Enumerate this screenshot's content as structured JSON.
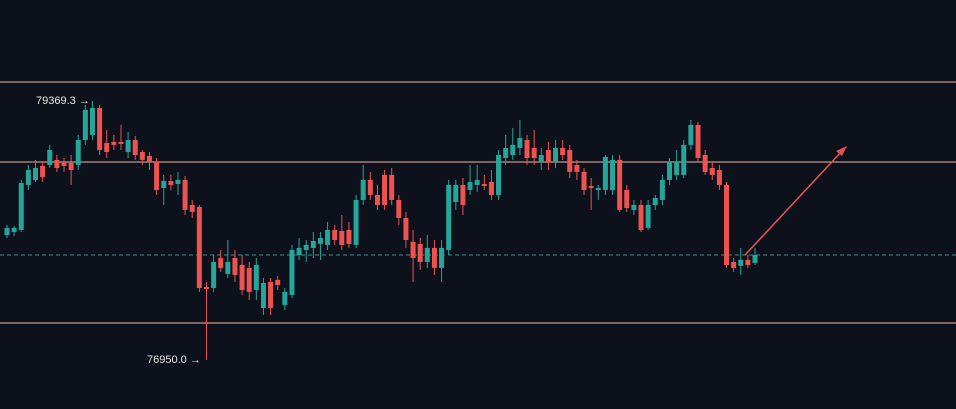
{
  "chart_data": {
    "type": "candlestick",
    "open": [
      78118,
      78146,
      78165,
      78585,
      78632,
      78763,
      78772,
      78819,
      78791,
      78791,
      78772,
      79005,
      79052,
      79304,
      78977,
      78987,
      78987,
      78893,
      79005,
      78893,
      78856,
      78800,
      78557,
      78622,
      78594,
      78632,
      78398,
      78380,
      77632,
      77623,
      77903,
      77754,
      77903,
      77838,
      77810,
      77604,
      77436,
      77679,
      77698,
      77464,
      77558,
      77931,
      77978,
      77997,
      78034,
      78025,
      78165,
      78155,
      78165,
      78025,
      78445,
      78632,
      78492,
      78679,
      78679,
      78445,
      78277,
      78053,
      78034,
      77866,
      77997,
      77810,
      77978,
      78426,
      78585,
      78538,
      78585,
      78594,
      78613,
      78492,
      78837,
      78865,
      78931,
      79005,
      78931,
      78800,
      78912,
      78800,
      78931,
      78912,
      78772,
      78707,
      78576,
      78538,
      78538,
      78538,
      78819,
      78538,
      78352,
      78398,
      78184,
      78398,
      78445,
      78632,
      78679,
      78679,
      78959,
      79146,
      78865,
      78744,
      78725,
      78585,
      77866,
      77829,
      77885,
      77857
    ],
    "high": [
      78212,
      78202,
      78632,
      78772,
      78819,
      78800,
      78959,
      78865,
      78837,
      78865,
      79052,
      79332,
      79369.3,
      79332,
      79099,
      79052,
      79146,
      79080,
      79043,
      78912,
      78893,
      78837,
      78679,
      78679,
      78707,
      78669,
      78445,
      78398,
      77679,
      77931,
      77978,
      78071,
      77978,
      77931,
      77866,
      77903,
      77716,
      77716,
      77735,
      77623,
      78025,
      78090,
      78071,
      78146,
      78146,
      78240,
      78212,
      78305,
      78240,
      78492,
      78772,
      78707,
      78585,
      78725,
      78744,
      78492,
      78333,
      78165,
      78090,
      78118,
      78071,
      78071,
      78632,
      78632,
      78650,
      78772,
      78772,
      78679,
      78725,
      78912,
      79052,
      79118,
      79192,
      79052,
      79099,
      78931,
      78987,
      79005,
      79005,
      78959,
      78819,
      78744,
      78650,
      78585,
      78865,
      78865,
      78865,
      78585,
      78445,
      78445,
      78445,
      78492,
      78679,
      78837,
      78912,
      79005,
      79192,
      79174,
      78912,
      78800,
      78772,
      78613,
      77903,
      77997,
      77931,
      77997
    ],
    "low": [
      78090,
      78109,
      78146,
      78538,
      78613,
      78613,
      78744,
      78707,
      78707,
      78585,
      78725,
      78959,
      79005,
      78865,
      78837,
      78912,
      78912,
      78837,
      78819,
      78772,
      78725,
      78492,
      78398,
      78538,
      78492,
      78305,
      78277,
      77586,
      76950.0,
      77586,
      77773,
      77716,
      77679,
      77558,
      77511,
      77511,
      77371,
      77371,
      77604,
      77418,
      77530,
      77885,
      77866,
      77903,
      77885,
      77978,
      78025,
      77978,
      77997,
      77997,
      78398,
      78445,
      78352,
      78352,
      78398,
      78212,
      77997,
      77679,
      77791,
      77810,
      77745,
      77679,
      77931,
      78352,
      78305,
      78492,
      78520,
      78538,
      78445,
      78445,
      78772,
      78819,
      78865,
      78772,
      78772,
      78725,
      78725,
      78744,
      78819,
      78650,
      78632,
      78492,
      78352,
      78445,
      78492,
      78492,
      78333,
      78333,
      78305,
      78146,
      78165,
      78352,
      78398,
      78585,
      78632,
      78650,
      78912,
      78800,
      78679,
      78632,
      78538,
      77810,
      77773,
      77745,
      77810,
      77838
    ],
    "close": [
      78184,
      78184,
      78604,
      78725,
      78744,
      78660,
      78912,
      78744,
      78763,
      78725,
      79005,
      79286,
      79304,
      78912,
      78893,
      78959,
      78968,
      79005,
      78865,
      78819,
      78800,
      78538,
      78622,
      78585,
      78632,
      78352,
      78333,
      77623,
      77614,
      77866,
      77810,
      77866,
      77745,
      77604,
      77586,
      77838,
      77670,
      77436,
      77651,
      77586,
      77978,
      77997,
      78025,
      78062,
      78090,
      78165,
      78071,
      78025,
      78034,
      78445,
      78632,
      78492,
      78398,
      78398,
      78445,
      78277,
      78071,
      77903,
      77866,
      77997,
      77810,
      77997,
      78585,
      78585,
      78398,
      78613,
      78632,
      78576,
      78492,
      78865,
      78931,
      78959,
      79024,
      78837,
      78837,
      78865,
      78800,
      78931,
      78865,
      78707,
      78707,
      78538,
      78557,
      78557,
      78847,
      78819,
      78352,
      78370,
      78398,
      78165,
      78398,
      78464,
      78632,
      78800,
      78800,
      78959,
      79146,
      78837,
      78707,
      78679,
      78585,
      77838,
      77810,
      77885,
      77838,
      77931
    ],
    "ylim": [
      76492.6,
      80312.6
    ],
    "levels": [
      79547,
      78800,
      77296
    ],
    "last_price": 77931,
    "up_color": "#26a69a",
    "down_color": "#ef5350",
    "level_color": "#f2b8a0",
    "last_price_color": "#3d8f8f",
    "annotations": [
      "79369.3 →",
      "76950.0 →"
    ]
  }
}
